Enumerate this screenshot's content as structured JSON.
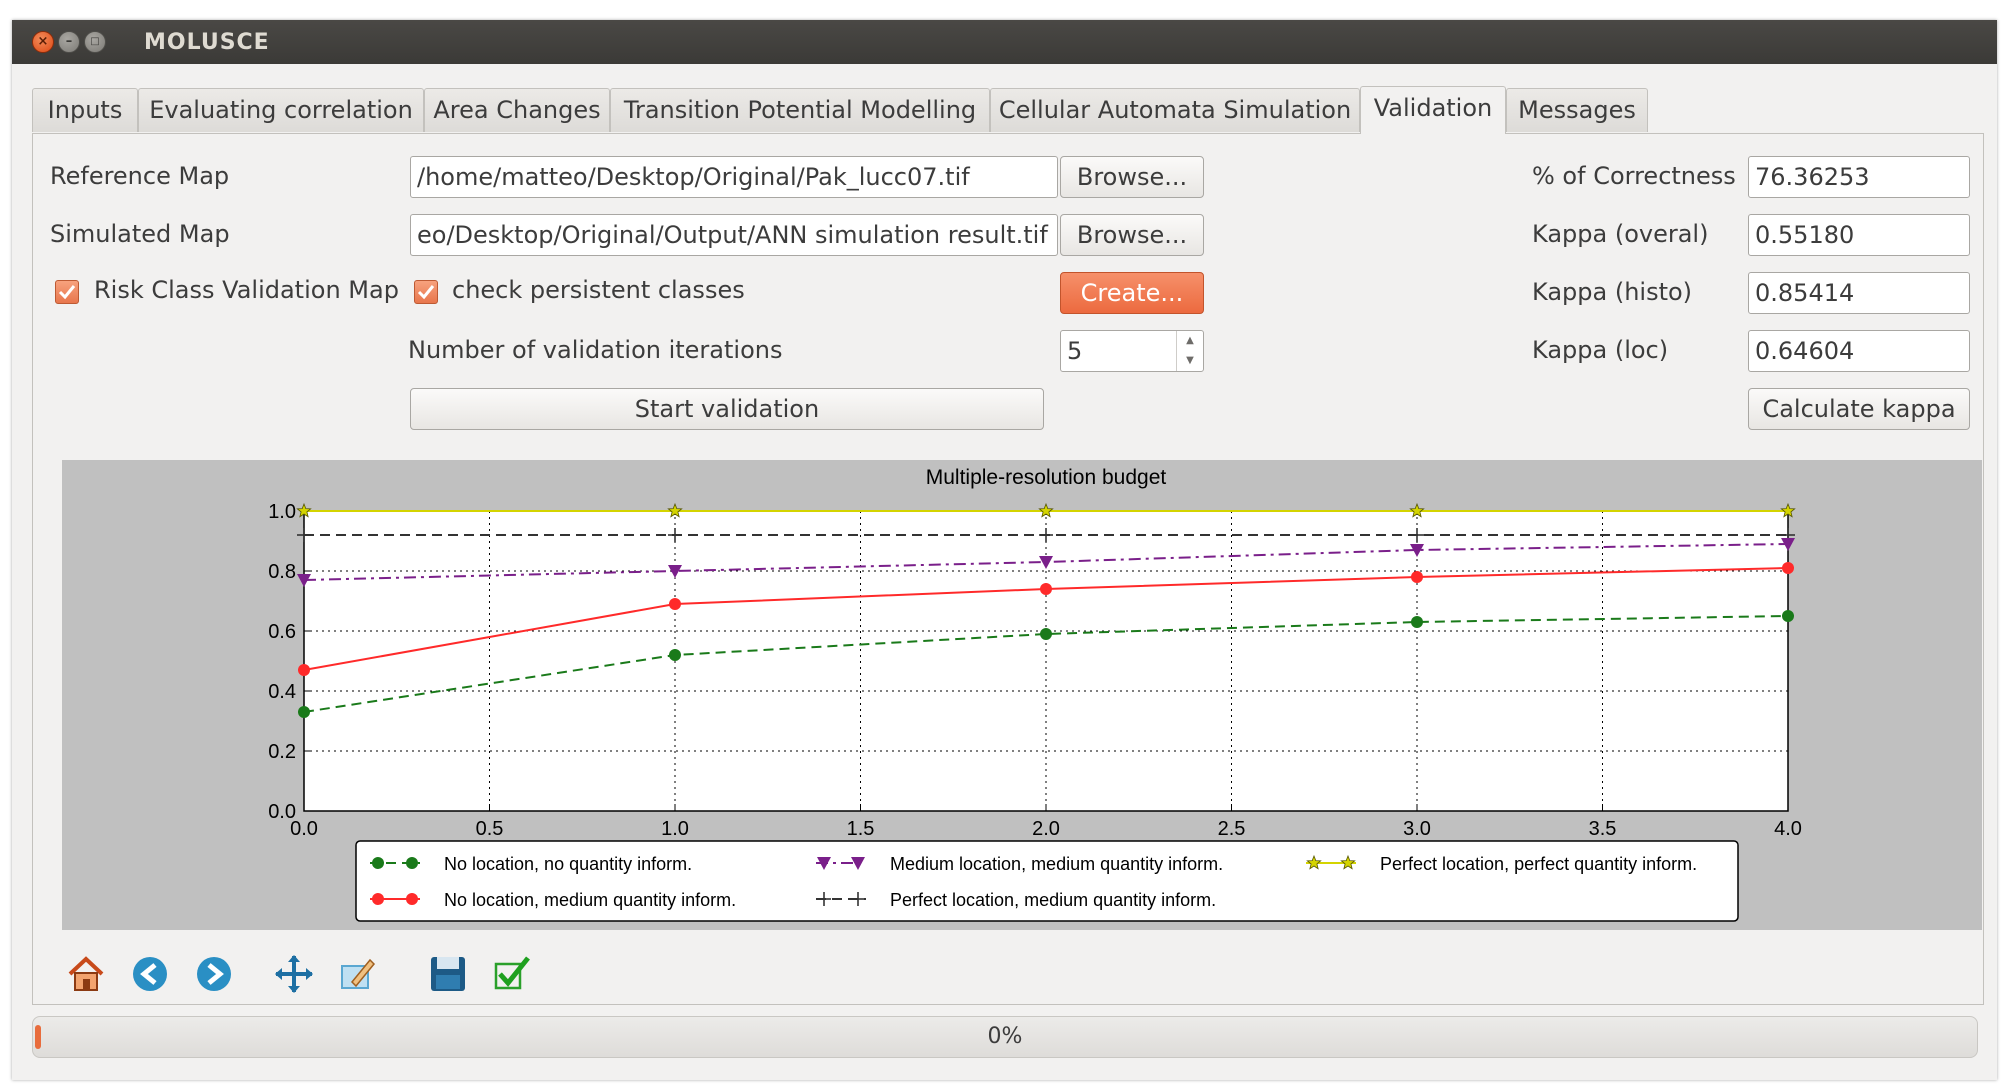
{
  "window": {
    "title": "MOLUSCE"
  },
  "tabs": [
    {
      "label": "Inputs",
      "active": false
    },
    {
      "label": "Evaluating correlation",
      "active": false
    },
    {
      "label": "Area Changes",
      "active": false
    },
    {
      "label": "Transition Potential Modelling",
      "active": false
    },
    {
      "label": "Cellular Automata Simulation",
      "active": false
    },
    {
      "label": "Validation",
      "active": true
    },
    {
      "label": "Messages",
      "active": false
    }
  ],
  "form": {
    "reference_map_label": "Reference Map",
    "reference_map_value": "/home/matteo/Desktop/Original/Pak_lucc07.tif",
    "simulated_map_label": "Simulated Map",
    "simulated_map_value": "eo/Desktop/Original/Output/ANN simulation result.tif",
    "browse_label": "Browse...",
    "risk_class_label": "Risk Class Validation Map",
    "risk_class_checked": true,
    "persistent_label": "check persistent classes",
    "persistent_checked": true,
    "create_label": "Create...",
    "iterations_label": "Number of validation iterations",
    "iterations_value": "5",
    "start_validation_label": "Start validation"
  },
  "stats": {
    "correctness_label": "% of Correctness",
    "correctness_value": "76.36253",
    "kappa_overal_label": "Kappa (overal)",
    "kappa_overal_value": "0.55180",
    "kappa_histo_label": "Kappa (histo)",
    "kappa_histo_value": "0.85414",
    "kappa_loc_label": "Kappa (loc)",
    "kappa_loc_value": "0.64604",
    "calculate_label": "Calculate kappa"
  },
  "toolbar": {
    "icons": [
      "home-icon",
      "back-icon",
      "forward-icon",
      "pan-icon",
      "configure-subplots-icon",
      "save-icon",
      "check-icon"
    ]
  },
  "progress": {
    "value": 0,
    "text": "0%"
  },
  "colors": {
    "accent": "#e8764c",
    "plot_bg": "#c0c0c0"
  },
  "chart_data": {
    "type": "line",
    "title": "Multiple-resolution budget",
    "xlabel": "",
    "ylabel": "",
    "xlim": [
      0.0,
      4.0
    ],
    "ylim": [
      0.0,
      1.0
    ],
    "xticks": [
      "0.0",
      "0.5",
      "1.0",
      "1.5",
      "2.0",
      "2.5",
      "3.0",
      "3.5",
      "4.0"
    ],
    "yticks": [
      "0.0",
      "0.2",
      "0.4",
      "0.6",
      "0.8",
      "1.0"
    ],
    "grid": true,
    "legend_placement": "bottom",
    "x": [
      0,
      1,
      2,
      3,
      4
    ],
    "series": [
      {
        "name": "No location, no quantity inform.",
        "values": [
          0.33,
          0.52,
          0.59,
          0.63,
          0.65
        ],
        "color": "#1a7a1a",
        "dash": "dashed",
        "marker": "circle"
      },
      {
        "name": "No location, medium quantity inform.",
        "values": [
          0.47,
          0.69,
          0.74,
          0.78,
          0.81
        ],
        "color": "#ff2a2a",
        "dash": "solid",
        "marker": "circle"
      },
      {
        "name": "Medium location, medium quantity inform.",
        "values": [
          0.77,
          0.8,
          0.83,
          0.87,
          0.89
        ],
        "color": "#7a1f8a",
        "dash": "dashdot",
        "marker": "triangle-down"
      },
      {
        "name": "Perfect location, medium quantity inform.",
        "values": [
          0.92,
          0.92,
          0.92,
          0.92,
          0.92
        ],
        "color": "#333333",
        "dash": "dashed",
        "marker": "plus"
      },
      {
        "name": "Perfect location, perfect quantity inform.",
        "values": [
          1.0,
          1.0,
          1.0,
          1.0,
          1.0
        ],
        "color": "#d4d400",
        "dash": "solid",
        "marker": "star"
      }
    ]
  }
}
